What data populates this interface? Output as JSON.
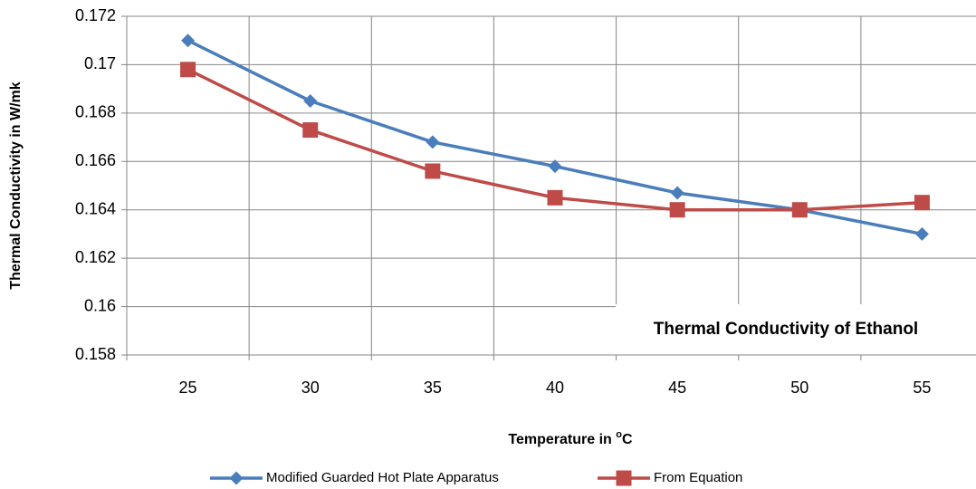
{
  "chart_data": {
    "type": "line",
    "title": "",
    "xlabel": "Temperature in ",
    "xlabel_sup": "o",
    "xlabel_suffix": "C",
    "ylabel": "Thermal Conductivity in W/mk",
    "annotation": "Thermal Conductivity of Ethanol",
    "categories": [
      "25",
      "30",
      "35",
      "40",
      "45",
      "50",
      "55"
    ],
    "ylim": [
      0.158,
      0.172
    ],
    "yticks": [
      "0.158",
      "0.16",
      "0.162",
      "0.164",
      "0.166",
      "0.168",
      "0.17",
      "0.172"
    ],
    "grid": true,
    "legend_position": "bottom",
    "series": [
      {
        "name": "Modified Guarded Hot Plate Apparatus",
        "color": "#4A7EBB",
        "marker": "diamond",
        "values": [
          0.171,
          0.1685,
          0.1668,
          0.1658,
          0.1647,
          0.164,
          0.163
        ]
      },
      {
        "name": "From Equation",
        "color": "#BE4B48",
        "marker": "square",
        "values": [
          0.1698,
          0.1673,
          0.1656,
          0.1645,
          0.164,
          0.164,
          0.1643
        ]
      }
    ]
  }
}
